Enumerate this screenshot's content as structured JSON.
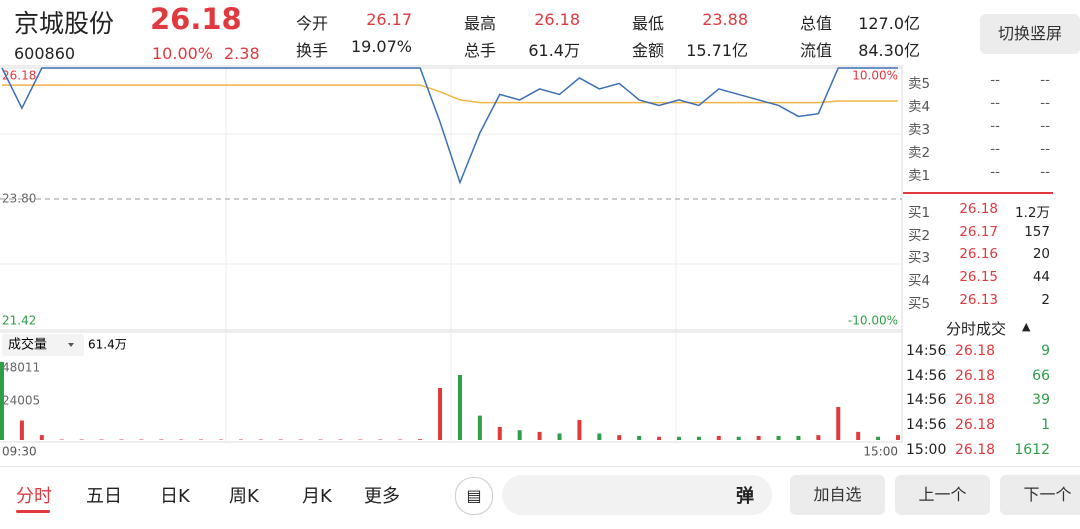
{
  "header": {
    "name": "京城股份",
    "price": "26.18",
    "code": "600860",
    "change_pct": "10.00%",
    "change": "2.38",
    "switch_button": "切换竖屏"
  },
  "stats": [
    {
      "label": "今开",
      "value": "26.17"
    },
    {
      "label": "最高",
      "value": "26.18"
    },
    {
      "label": "最低",
      "value": "23.88"
    },
    {
      "label": "总值",
      "value": "127.0亿"
    },
    {
      "label": "换手",
      "value": "19.07%"
    },
    {
      "label": "总手",
      "value": "61.4万"
    },
    {
      "label": "金额",
      "value": "15.71亿"
    },
    {
      "label": "流值",
      "value": "84.30亿"
    }
  ],
  "order_book": {
    "sells": [
      {
        "label": "卖5",
        "price": "--",
        "volume": "--"
      },
      {
        "label": "卖4",
        "price": "--",
        "volume": "--"
      },
      {
        "label": "卖3",
        "price": "--",
        "volume": "--"
      },
      {
        "label": "卖2",
        "price": "--",
        "volume": "--"
      },
      {
        "label": "卖1",
        "price": "--",
        "volume": "--"
      }
    ],
    "buys": [
      {
        "label": "买1",
        "price": "26.18",
        "volume": "1.2万"
      },
      {
        "label": "买2",
        "price": "26.17",
        "volume": "157"
      },
      {
        "label": "买3",
        "price": "26.16",
        "volume": "20"
      },
      {
        "label": "买4",
        "price": "26.15",
        "volume": "44"
      },
      {
        "label": "买5",
        "price": "26.13",
        "volume": "2"
      }
    ]
  },
  "trades": {
    "title": "分时成交",
    "rows": [
      {
        "time": "14:56",
        "price": "26.18",
        "volume": "9"
      },
      {
        "time": "14:56",
        "price": "26.18",
        "volume": "66"
      },
      {
        "time": "14:56",
        "price": "26.18",
        "volume": "39"
      },
      {
        "time": "14:56",
        "price": "26.18",
        "volume": "1"
      },
      {
        "time": "15:00",
        "price": "26.18",
        "volume": "1612"
      }
    ]
  },
  "volume_header": {
    "label": "成交量",
    "total": "61.4万"
  },
  "tabs": [
    "分时",
    "五日",
    "日K",
    "周K",
    "月K",
    "更多"
  ],
  "toolbar": {
    "danmu": "弹",
    "add": "加自选",
    "prev": "上一个",
    "next": "下一个"
  },
  "chart_data": [
    {
      "type": "line",
      "ylim": [
        21.42,
        26.18
      ],
      "yticks": [
        21.42,
        {
          "value": 23.8,
          "label": "23.80"
        },
        26.18
      ],
      "y2lim": [
        -10,
        10
      ],
      "y2ticks": [
        {
          "value": -10,
          "label": "-10.00%"
        },
        {
          "value": 10,
          "label": "10.00%"
        }
      ],
      "grid": true,
      "series": [
        {
          "color": "#3a6fb6",
          "values": [
            26.18,
            25.45,
            26.18,
            26.18,
            26.18,
            26.18,
            26.18,
            26.18,
            26.18,
            26.18,
            26.18,
            26.18,
            26.18,
            26.18,
            26.18,
            26.18,
            26.18,
            26.18,
            26.18,
            26.18,
            26.18,
            26.18,
            25.2,
            24.1,
            25.0,
            25.7,
            25.6,
            25.8,
            25.7,
            26.0,
            25.8,
            25.9,
            25.6,
            25.5,
            25.6,
            25.5,
            25.8,
            25.7,
            25.6,
            25.5,
            25.3,
            25.35,
            26.18,
            26.18,
            26.18,
            26.18
          ]
        },
        {
          "color": "#f0b545",
          "values": [
            25.87,
            25.87,
            25.87,
            25.87,
            25.87,
            25.87,
            25.87,
            25.87,
            25.87,
            25.87,
            25.87,
            25.87,
            25.87,
            25.87,
            25.87,
            25.87,
            25.87,
            25.87,
            25.87,
            25.87,
            25.87,
            25.87,
            25.75,
            25.6,
            25.55,
            25.55,
            25.55,
            25.55,
            25.55,
            25.55,
            25.55,
            25.55,
            25.55,
            25.55,
            25.55,
            25.55,
            25.55,
            25.55,
            25.55,
            25.55,
            25.55,
            25.55,
            25.58,
            25.58,
            25.58,
            25.58
          ]
        }
      ]
    },
    {
      "type": "bar",
      "categories": [
        "09:30",
        null,
        null,
        null,
        null,
        null,
        null,
        null,
        null,
        null,
        null,
        null,
        null,
        null,
        null,
        null,
        null,
        null,
        null,
        null,
        null,
        null,
        null,
        null,
        null,
        null,
        null,
        null,
        null,
        null,
        null,
        null,
        null,
        null,
        null,
        null,
        null,
        null,
        null,
        null,
        null,
        null,
        null,
        null,
        null,
        "15:00"
      ],
      "ylim": [
        0,
        48011
      ],
      "yticks": [
        24005,
        48011
      ],
      "values": [
        48011,
        12000,
        3000,
        300,
        300,
        300,
        300,
        300,
        300,
        300,
        300,
        300,
        300,
        300,
        300,
        300,
        300,
        300,
        300,
        300,
        300,
        500,
        32000,
        40000,
        15000,
        8000,
        6000,
        5000,
        4000,
        12300,
        4000,
        3000,
        2500,
        2000,
        2000,
        2000,
        2500,
        2000,
        2500,
        2500,
        2500,
        3000,
        20300,
        5000,
        2000,
        3000
      ],
      "colors": [
        "#2e9e4a",
        "#e0393e",
        "#e0393e",
        "#e0393e",
        "#e0393e",
        "#e0393e",
        "#e0393e",
        "#e0393e",
        "#e0393e",
        "#e0393e",
        "#e0393e",
        "#e0393e",
        "#e0393e",
        "#e0393e",
        "#e0393e",
        "#e0393e",
        "#e0393e",
        "#e0393e",
        "#e0393e",
        "#e0393e",
        "#e0393e",
        "#e0393e",
        "#e0393e",
        "#2e9e4a",
        "#2e9e4a",
        "#e0393e",
        "#2e9e4a",
        "#e0393e",
        "#2e9e4a",
        "#e0393e",
        "#2e9e4a",
        "#e0393e",
        "#2e9e4a",
        "#e0393e",
        "#2e9e4a",
        "#2e9e4a",
        "#e0393e",
        "#2e9e4a",
        "#e0393e",
        "#2e9e4a",
        "#2e9e4a",
        "#e0393e",
        "#e0393e",
        "#e0393e",
        "#2e9e4a",
        "#e0393e"
      ]
    }
  ]
}
